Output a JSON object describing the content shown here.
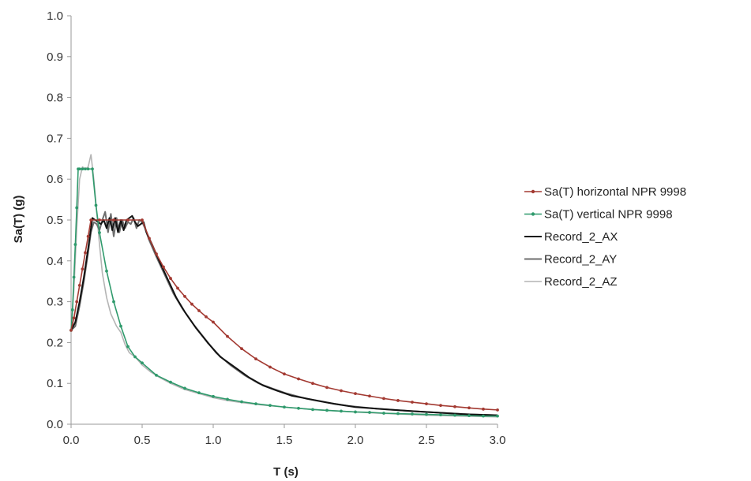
{
  "chart_data": {
    "type": "line",
    "title": "",
    "xlabel": "T (s)",
    "ylabel": "Sa(T) (g)",
    "xlim": [
      0,
      3
    ],
    "ylim": [
      0,
      1
    ],
    "x_ticks": [
      "0.0",
      "0.5",
      "1.0",
      "1.5",
      "2.0",
      "2.5",
      "3.0"
    ],
    "y_ticks": [
      "0.0",
      "0.1",
      "0.2",
      "0.3",
      "0.4",
      "0.5",
      "0.6",
      "0.7",
      "0.8",
      "0.9",
      "1.0"
    ],
    "grid": false,
    "legend_position": "right",
    "series": [
      {
        "name": "Sa(T) horizontal NPR 9998",
        "color": "#a33a32",
        "markers": true,
        "points": [
          [
            0.0,
            0.23
          ],
          [
            0.02,
            0.26
          ],
          [
            0.04,
            0.3
          ],
          [
            0.06,
            0.34
          ],
          [
            0.08,
            0.38
          ],
          [
            0.1,
            0.42
          ],
          [
            0.12,
            0.46
          ],
          [
            0.14,
            0.5
          ],
          [
            0.2,
            0.5
          ],
          [
            0.3,
            0.5
          ],
          [
            0.4,
            0.5
          ],
          [
            0.5,
            0.5
          ],
          [
            0.55,
            0.455
          ],
          [
            0.6,
            0.417
          ],
          [
            0.65,
            0.385
          ],
          [
            0.7,
            0.357
          ],
          [
            0.75,
            0.333
          ],
          [
            0.8,
            0.313
          ],
          [
            0.85,
            0.294
          ],
          [
            0.9,
            0.278
          ],
          [
            0.95,
            0.263
          ],
          [
            1.0,
            0.25
          ],
          [
            1.1,
            0.215
          ],
          [
            1.2,
            0.185
          ],
          [
            1.3,
            0.16
          ],
          [
            1.4,
            0.14
          ],
          [
            1.5,
            0.123
          ],
          [
            1.6,
            0.111
          ],
          [
            1.7,
            0.1
          ],
          [
            1.8,
            0.09
          ],
          [
            1.9,
            0.082
          ],
          [
            2.0,
            0.075
          ],
          [
            2.1,
            0.069
          ],
          [
            2.2,
            0.063
          ],
          [
            2.3,
            0.058
          ],
          [
            2.4,
            0.054
          ],
          [
            2.5,
            0.05
          ],
          [
            2.6,
            0.046
          ],
          [
            2.7,
            0.043
          ],
          [
            2.8,
            0.04
          ],
          [
            2.9,
            0.037
          ],
          [
            3.0,
            0.035
          ]
        ]
      },
      {
        "name": "Sa(T) vertical NPR 9998",
        "color": "#2f9a6c",
        "markers": true,
        "points": [
          [
            0.0,
            0.23
          ],
          [
            0.01,
            0.28
          ],
          [
            0.02,
            0.36
          ],
          [
            0.03,
            0.44
          ],
          [
            0.04,
            0.53
          ],
          [
            0.05,
            0.625
          ],
          [
            0.06,
            0.625
          ],
          [
            0.08,
            0.625
          ],
          [
            0.1,
            0.625
          ],
          [
            0.12,
            0.625
          ],
          [
            0.15,
            0.625
          ],
          [
            0.175,
            0.536
          ],
          [
            0.2,
            0.469
          ],
          [
            0.25,
            0.375
          ],
          [
            0.3,
            0.3
          ],
          [
            0.35,
            0.24
          ],
          [
            0.4,
            0.19
          ],
          [
            0.45,
            0.165
          ],
          [
            0.5,
            0.15
          ],
          [
            0.6,
            0.12
          ],
          [
            0.7,
            0.103
          ],
          [
            0.8,
            0.088
          ],
          [
            0.9,
            0.077
          ],
          [
            1.0,
            0.068
          ],
          [
            1.1,
            0.061
          ],
          [
            1.2,
            0.055
          ],
          [
            1.3,
            0.05
          ],
          [
            1.4,
            0.046
          ],
          [
            1.5,
            0.042
          ],
          [
            1.6,
            0.039
          ],
          [
            1.7,
            0.036
          ],
          [
            1.8,
            0.034
          ],
          [
            1.9,
            0.032
          ],
          [
            2.0,
            0.03
          ],
          [
            2.1,
            0.029
          ],
          [
            2.2,
            0.027
          ],
          [
            2.3,
            0.026
          ],
          [
            2.4,
            0.025
          ],
          [
            2.5,
            0.024
          ],
          [
            2.6,
            0.023
          ],
          [
            2.7,
            0.022
          ],
          [
            2.8,
            0.021
          ],
          [
            2.9,
            0.02
          ],
          [
            3.0,
            0.02
          ]
        ]
      },
      {
        "name": "Record_2_AX",
        "color": "#111111",
        "markers": false,
        "points": [
          [
            0.0,
            0.23
          ],
          [
            0.03,
            0.25
          ],
          [
            0.06,
            0.3
          ],
          [
            0.09,
            0.36
          ],
          [
            0.12,
            0.43
          ],
          [
            0.14,
            0.48
          ],
          [
            0.15,
            0.505
          ],
          [
            0.17,
            0.5
          ],
          [
            0.19,
            0.495
          ],
          [
            0.21,
            0.49
          ],
          [
            0.23,
            0.5
          ],
          [
            0.25,
            0.48
          ],
          [
            0.27,
            0.505
          ],
          [
            0.29,
            0.475
          ],
          [
            0.31,
            0.505
          ],
          [
            0.33,
            0.47
          ],
          [
            0.35,
            0.5
          ],
          [
            0.37,
            0.475
          ],
          [
            0.39,
            0.5
          ],
          [
            0.41,
            0.505
          ],
          [
            0.43,
            0.51
          ],
          [
            0.45,
            0.495
          ],
          [
            0.47,
            0.485
          ],
          [
            0.49,
            0.49
          ],
          [
            0.51,
            0.495
          ],
          [
            0.53,
            0.47
          ],
          [
            0.57,
            0.44
          ],
          [
            0.62,
            0.4
          ],
          [
            0.68,
            0.355
          ],
          [
            0.74,
            0.31
          ],
          [
            0.8,
            0.275
          ],
          [
            0.88,
            0.235
          ],
          [
            0.96,
            0.2
          ],
          [
            1.05,
            0.165
          ],
          [
            1.15,
            0.14
          ],
          [
            1.25,
            0.115
          ],
          [
            1.35,
            0.095
          ],
          [
            1.45,
            0.082
          ],
          [
            1.55,
            0.07
          ],
          [
            1.7,
            0.06
          ],
          [
            1.85,
            0.05
          ],
          [
            2.0,
            0.042
          ],
          [
            2.2,
            0.037
          ],
          [
            2.4,
            0.032
          ],
          [
            2.6,
            0.028
          ],
          [
            2.8,
            0.024
          ],
          [
            3.0,
            0.022
          ]
        ]
      },
      {
        "name": "Record_2_AY",
        "color": "#6e6e6e",
        "markers": false,
        "points": [
          [
            0.0,
            0.23
          ],
          [
            0.03,
            0.24
          ],
          [
            0.06,
            0.29
          ],
          [
            0.09,
            0.35
          ],
          [
            0.12,
            0.42
          ],
          [
            0.14,
            0.47
          ],
          [
            0.16,
            0.495
          ],
          [
            0.18,
            0.49
          ],
          [
            0.2,
            0.475
          ],
          [
            0.22,
            0.5
          ],
          [
            0.24,
            0.52
          ],
          [
            0.26,
            0.47
          ],
          [
            0.28,
            0.515
          ],
          [
            0.3,
            0.46
          ],
          [
            0.32,
            0.505
          ],
          [
            0.34,
            0.47
          ],
          [
            0.36,
            0.5
          ],
          [
            0.38,
            0.48
          ],
          [
            0.4,
            0.495
          ],
          [
            0.42,
            0.49
          ],
          [
            0.44,
            0.505
          ],
          [
            0.46,
            0.48
          ],
          [
            0.48,
            0.5
          ],
          [
            0.5,
            0.495
          ],
          [
            0.52,
            0.48
          ],
          [
            0.55,
            0.45
          ],
          [
            0.6,
            0.41
          ],
          [
            0.66,
            0.365
          ],
          [
            0.72,
            0.32
          ],
          [
            0.78,
            0.285
          ],
          [
            0.86,
            0.245
          ],
          [
            0.94,
            0.21
          ],
          [
            1.02,
            0.175
          ],
          [
            1.12,
            0.145
          ],
          [
            1.22,
            0.12
          ],
          [
            1.32,
            0.1
          ],
          [
            1.42,
            0.087
          ],
          [
            1.52,
            0.075
          ],
          [
            1.66,
            0.062
          ],
          [
            1.8,
            0.053
          ],
          [
            1.95,
            0.045
          ],
          [
            2.15,
            0.038
          ],
          [
            2.35,
            0.033
          ],
          [
            2.55,
            0.029
          ],
          [
            2.75,
            0.025
          ],
          [
            3.0,
            0.022
          ]
        ]
      },
      {
        "name": "Record_2_AZ",
        "color": "#b4b4b4",
        "markers": false,
        "points": [
          [
            0.0,
            0.23
          ],
          [
            0.02,
            0.33
          ],
          [
            0.04,
            0.48
          ],
          [
            0.06,
            0.6
          ],
          [
            0.08,
            0.63
          ],
          [
            0.1,
            0.625
          ],
          [
            0.12,
            0.63
          ],
          [
            0.14,
            0.66
          ],
          [
            0.16,
            0.6
          ],
          [
            0.18,
            0.52
          ],
          [
            0.2,
            0.44
          ],
          [
            0.22,
            0.37
          ],
          [
            0.25,
            0.31
          ],
          [
            0.28,
            0.27
          ],
          [
            0.3,
            0.255
          ],
          [
            0.32,
            0.24
          ],
          [
            0.35,
            0.225
          ],
          [
            0.38,
            0.195
          ],
          [
            0.41,
            0.175
          ],
          [
            0.45,
            0.165
          ],
          [
            0.5,
            0.145
          ],
          [
            0.56,
            0.128
          ],
          [
            0.62,
            0.115
          ],
          [
            0.7,
            0.1
          ],
          [
            0.8,
            0.085
          ],
          [
            0.9,
            0.075
          ],
          [
            1.0,
            0.065
          ],
          [
            1.1,
            0.058
          ],
          [
            1.2,
            0.053
          ],
          [
            1.35,
            0.047
          ],
          [
            1.5,
            0.042
          ],
          [
            1.7,
            0.036
          ],
          [
            1.9,
            0.032
          ],
          [
            2.1,
            0.028
          ],
          [
            2.3,
            0.025
          ],
          [
            2.5,
            0.022
          ],
          [
            2.75,
            0.02
          ],
          [
            3.0,
            0.018
          ]
        ]
      }
    ]
  }
}
